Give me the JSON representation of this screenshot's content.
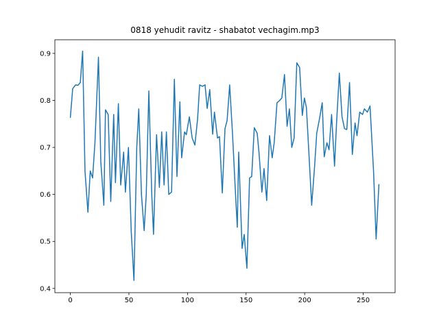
{
  "chart_data": {
    "type": "line",
    "title": "0818 yehudit ravitz - shabatot vechagim.mp3",
    "color": "#1f77b4",
    "x": [
      0,
      2,
      4.5,
      6.5,
      8.5,
      10.5,
      12.5,
      15,
      17,
      19,
      21,
      24,
      26,
      28.6,
      30,
      32.3,
      34.5,
      37,
      38.5,
      41,
      43,
      45.5,
      47,
      49.6,
      52,
      54.3,
      56.7,
      58.4,
      60.7,
      63,
      64.8,
      67,
      69.5,
      71,
      73.6,
      76,
      78,
      80,
      82,
      84,
      86.4,
      88.8,
      91,
      93.5,
      95,
      97.5,
      99,
      101.6,
      104,
      106.3,
      108.6,
      110.4,
      112.7,
      115,
      116.8,
      119,
      121.5,
      123,
      125.6,
      127.3,
      129.7,
      132,
      133.8,
      136,
      138.4,
      140.8,
      142.5,
      143.7,
      146.6,
      148.4,
      150.7,
      153,
      154.8,
      157,
      159.5,
      161,
      163.5,
      165.3,
      167.6,
      170,
      172.3,
      174,
      176.4,
      178.7,
      180.5,
      182.8,
      185,
      187,
      189,
      191,
      193.3,
      195.7,
      198,
      199.8,
      201.5,
      203.8,
      206,
      208.5,
      210.3,
      212.6,
      215,
      216.7,
      219,
      220.8,
      223,
      225.5,
      227.2,
      229.6,
      231.9,
      234,
      236,
      238.3,
      240.7,
      243,
      244.7,
      247,
      249.4,
      251,
      253.5,
      255.8,
      258.8,
      261,
      263.4
    ],
    "values": [
      0.763,
      0.825,
      0.833,
      0.832,
      0.838,
      0.905,
      0.65,
      0.562,
      0.65,
      0.635,
      0.71,
      0.892,
      0.67,
      0.577,
      0.78,
      0.77,
      0.585,
      0.77,
      0.625,
      0.793,
      0.62,
      0.69,
      0.605,
      0.7,
      0.52,
      0.417,
      0.7,
      0.782,
      0.6,
      0.523,
      0.6,
      0.82,
      0.6,
      0.515,
      0.727,
      0.615,
      0.733,
      0.62,
      0.733,
      0.6,
      0.605,
      0.845,
      0.638,
      0.797,
      0.678,
      0.733,
      0.727,
      0.765,
      0.72,
      0.705,
      0.76,
      0.833,
      0.83,
      0.833,
      0.783,
      0.823,
      0.728,
      0.775,
      0.72,
      0.723,
      0.603,
      0.74,
      0.757,
      0.833,
      0.73,
      0.61,
      0.53,
      0.69,
      0.485,
      0.515,
      0.443,
      0.635,
      0.638,
      0.742,
      0.73,
      0.69,
      0.605,
      0.655,
      0.587,
      0.725,
      0.678,
      0.71,
      0.795,
      0.8,
      0.805,
      0.855,
      0.745,
      0.782,
      0.7,
      0.72,
      0.88,
      0.87,
      0.768,
      0.805,
      0.785,
      0.68,
      0.577,
      0.66,
      0.73,
      0.76,
      0.795,
      0.68,
      0.71,
      0.695,
      0.77,
      0.66,
      0.75,
      0.858,
      0.765,
      0.74,
      0.738,
      0.838,
      0.685,
      0.752,
      0.725,
      0.775,
      0.77,
      0.782,
      0.775,
      0.788,
      0.65,
      0.505,
      0.622
    ],
    "xlim": [
      -13.2,
      277.2
    ],
    "xticks": [
      0,
      50,
      100,
      150,
      200,
      250
    ],
    "ylim": [
      0.391,
      0.929
    ],
    "yticks": [
      0.4,
      0.5,
      0.6,
      0.7,
      0.8,
      0.9
    ]
  }
}
